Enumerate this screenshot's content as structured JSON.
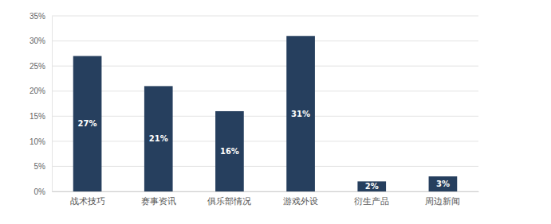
{
  "chart_data": {
    "type": "bar",
    "categories": [
      "战术技巧",
      "赛事资讯",
      "俱乐部情况",
      "游戏外设",
      "衍生产品",
      "周边新闻"
    ],
    "values": [
      27,
      21,
      16,
      31,
      2,
      3
    ],
    "value_labels": [
      "27%",
      "21%",
      "16%",
      "31%",
      "2%",
      "3%"
    ],
    "color": "#263f5e",
    "ylim": [
      0,
      35
    ],
    "yticks": [
      {
        "value": 0,
        "label": "0%"
      },
      {
        "value": 5,
        "label": "5%"
      },
      {
        "value": 10,
        "label": "10%"
      },
      {
        "value": 15,
        "label": "15%"
      },
      {
        "value": 20,
        "label": "20%"
      },
      {
        "value": 25,
        "label": "25%"
      },
      {
        "value": 30,
        "label": "30%"
      },
      {
        "value": 35,
        "label": "35%"
      }
    ],
    "grid": true,
    "data_labels": true
  }
}
